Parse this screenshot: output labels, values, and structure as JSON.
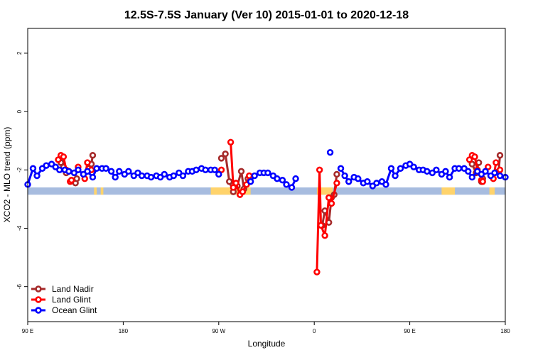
{
  "colors": {
    "land_nadir": "#a52a2a",
    "land_glint": "#ff0000",
    "ocean_glint": "#0000ff",
    "band_blue": "#a7bcdf",
    "band_yellow": "#ffd36b"
  },
  "chart_data": {
    "type": "line",
    "title": "12.5S-7.5S January (Ver 10)   2015-01-01 to 2020-12-18",
    "xlabel": "Longitude",
    "ylabel": "XCO2 - MLO trend (ppm)",
    "xlim": [
      -90,
      270
    ],
    "ylim": [
      -7.2,
      2.85
    ],
    "grid": false,
    "legend_position": "bottom-left",
    "x_ticks": [
      {
        "value": -90,
        "label": "90 E"
      },
      {
        "value": -18,
        "label": "180"
      },
      {
        "value": 54,
        "label": "90 W"
      },
      {
        "value": 126,
        "label": "0"
      },
      {
        "value": 198,
        "label": "90 E"
      },
      {
        "value": 270,
        "label": "180"
      }
    ],
    "y_ticks": [
      {
        "value": -6,
        "label": "-6"
      },
      {
        "value": -4,
        "label": "-4"
      },
      {
        "value": -2,
        "label": "-2"
      },
      {
        "value": 0,
        "label": "0"
      },
      {
        "value": 2,
        "label": "2"
      }
    ],
    "series": [
      {
        "name": "Land Nadir",
        "color": "#a52a2a",
        "segments": [
          [
            [
              -65,
              -1.75
            ],
            [
              -63,
              -1.9
            ],
            [
              -61,
              -2.1
            ],
            [
              -59,
              -2.05
            ]
          ],
          [
            [
              -54,
              -2.45
            ],
            [
              -53,
              -2.3
            ]
          ],
          [
            [
              -45,
              -2.05
            ],
            [
              -44,
              -1.95
            ]
          ],
          [
            [
              -42,
              -1.8
            ],
            [
              -41,
              -1.5
            ]
          ],
          [
            [
              56,
              -1.6
            ],
            [
              59,
              -1.45
            ],
            [
              62,
              -2.4
            ],
            [
              65,
              -2.75
            ],
            [
              68,
              -2.55
            ],
            [
              71,
              -2.05
            ],
            [
              73,
              -2.65
            ],
            [
              76,
              -2.3
            ]
          ],
          [
            [
              132,
              -3.9
            ],
            [
              134,
              -3.4
            ],
            [
              137,
              -3.8
            ],
            [
              139,
              -2.95
            ],
            [
              141,
              -2.85
            ],
            [
              143,
              -2.15
            ]
          ],
          [
            [
              245,
              -1.8
            ],
            [
              248,
              -2.1
            ],
            [
              250,
              -1.75
            ]
          ],
          [
            [
              252,
              -2.4
            ],
            [
              253,
              -2.3
            ]
          ],
          [
            [
              265,
              -2.05
            ],
            [
              266,
              -1.5
            ]
          ]
        ]
      },
      {
        "name": "Land Glint",
        "color": "#ff0000",
        "segments": [
          [
            [
              -67,
              -1.65
            ],
            [
              -65,
              -1.5
            ],
            [
              -63,
              -1.55
            ],
            [
              -61,
              -2.0
            ]
          ],
          [
            [
              -58,
              -2.4
            ],
            [
              -57,
              -2.35
            ]
          ],
          [
            [
              -52,
              -1.9
            ]
          ],
          [
            [
              -47,
              -2.3
            ],
            [
              -45,
              -1.75
            ]
          ],
          [
            [
              -42,
              -2.0
            ]
          ],
          [
            [
              56,
              -2.0
            ]
          ],
          [
            [
              63,
              -1.05
            ],
            [
              65,
              -2.6
            ],
            [
              67,
              -2.45
            ],
            [
              70,
              -2.85
            ],
            [
              72,
              -2.75
            ],
            [
              75,
              -2.5
            ],
            [
              77,
              -2.2
            ]
          ],
          [
            [
              128,
              -5.5
            ],
            [
              130,
              -2.0
            ],
            [
              131,
              -3.9
            ],
            [
              134,
              -4.25
            ],
            [
              137,
              -2.95
            ],
            [
              139,
              -3.15
            ],
            [
              143,
              -2.45
            ]
          ],
          [
            [
              243,
              -1.65
            ],
            [
              245,
              -1.5
            ],
            [
              247,
              -1.55
            ],
            [
              249,
              -2.0
            ]
          ],
          [
            [
              252,
              -2.35
            ],
            [
              253,
              -2.4
            ]
          ],
          [
            [
              257,
              -1.9
            ]
          ],
          [
            [
              261,
              -2.3
            ],
            [
              263,
              -1.75
            ]
          ],
          [
            [
              266,
              -2.0
            ]
          ]
        ]
      },
      {
        "name": "Ocean Glint",
        "color": "#0000ff",
        "segments": [
          [
            [
              -90,
              -2.5
            ],
            [
              -86,
              -1.95
            ],
            [
              -83,
              -2.2
            ],
            [
              -79,
              -1.95
            ],
            [
              -76,
              -1.85
            ],
            [
              -72,
              -1.8
            ],
            [
              -69,
              -1.9
            ],
            [
              -66,
              -2.0
            ],
            [
              -62,
              -2.0
            ],
            [
              -59,
              -2.05
            ],
            [
              -55,
              -2.1
            ],
            [
              -52,
              -2.0
            ],
            [
              -48,
              -2.15
            ],
            [
              -45,
              -2.05
            ],
            [
              -41,
              -2.25
            ],
            [
              -38,
              -1.95
            ],
            [
              -34,
              -1.95
            ],
            [
              -31,
              -1.95
            ],
            [
              -27,
              -2.05
            ],
            [
              -24,
              -2.25
            ],
            [
              -21,
              -2.05
            ],
            [
              -17,
              -2.15
            ],
            [
              -14,
              -2.05
            ],
            [
              -10,
              -2.2
            ],
            [
              -7,
              -2.1
            ],
            [
              -4,
              -2.2
            ],
            [
              0,
              -2.2
            ],
            [
              3,
              -2.25
            ],
            [
              7,
              -2.2
            ],
            [
              10,
              -2.25
            ],
            [
              13,
              -2.15
            ],
            [
              17,
              -2.25
            ],
            [
              20,
              -2.2
            ],
            [
              24,
              -2.1
            ],
            [
              27,
              -2.2
            ],
            [
              31,
              -2.05
            ],
            [
              34,
              -2.05
            ],
            [
              37,
              -2.0
            ],
            [
              41,
              -1.95
            ],
            [
              44,
              -2.0
            ],
            [
              48,
              -2.0
            ],
            [
              51,
              -2.0
            ],
            [
              54,
              -2.15
            ]
          ],
          [
            [
              78,
              -2.4
            ],
            [
              81,
              -2.2
            ],
            [
              85,
              -2.1
            ],
            [
              88,
              -2.1
            ],
            [
              91,
              -2.1
            ],
            [
              95,
              -2.2
            ],
            [
              98,
              -2.3
            ],
            [
              102,
              -2.35
            ],
            [
              105,
              -2.5
            ],
            [
              109,
              -2.6
            ],
            [
              112,
              -2.3
            ]
          ],
          [
            [
              138,
              -1.4
            ]
          ],
          [
            [
              146,
              -1.95
            ],
            [
              149,
              -2.2
            ],
            [
              152,
              -2.4
            ],
            [
              156,
              -2.25
            ],
            [
              159,
              -2.3
            ],
            [
              163,
              -2.45
            ],
            [
              166,
              -2.4
            ],
            [
              170,
              -2.55
            ],
            [
              173,
              -2.45
            ],
            [
              177,
              -2.4
            ],
            [
              180,
              -2.5
            ],
            [
              184,
              -1.95
            ],
            [
              187,
              -2.2
            ],
            [
              191,
              -1.95
            ],
            [
              195,
              -1.85
            ],
            [
              198,
              -1.8
            ],
            [
              201,
              -1.9
            ],
            [
              205,
              -2.0
            ],
            [
              208,
              -2.0
            ],
            [
              211,
              -2.05
            ],
            [
              215,
              -2.1
            ],
            [
              218,
              -2.0
            ],
            [
              222,
              -2.15
            ],
            [
              225,
              -2.05
            ],
            [
              228,
              -2.25
            ],
            [
              232,
              -1.95
            ],
            [
              235,
              -1.95
            ],
            [
              239,
              -1.95
            ],
            [
              242,
              -2.05
            ],
            [
              245,
              -2.25
            ],
            [
              249,
              -2.05
            ],
            [
              252,
              -2.15
            ],
            [
              255,
              -2.05
            ],
            [
              259,
              -2.2
            ],
            [
              262,
              -2.1
            ],
            [
              266,
              -2.2
            ],
            [
              270,
              -2.25
            ]
          ]
        ]
      }
    ],
    "background_band": {
      "y_top": -2.6,
      "y_bottom": -2.85,
      "land_regions": [
        [
          -40,
          -38
        ],
        [
          -35,
          -33
        ],
        [
          48,
          78
        ],
        [
          128,
          140
        ],
        [
          222,
          232
        ],
        [
          258,
          262
        ]
      ]
    }
  }
}
